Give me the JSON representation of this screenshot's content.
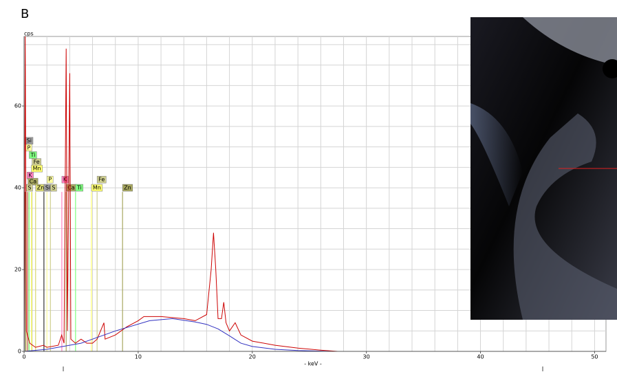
{
  "panel_label": "B",
  "chart_data": {
    "type": "line",
    "y_label": "cps",
    "x_label": "- keV -",
    "xlim": [
      0,
      51
    ],
    "ylim": [
      0,
      77
    ],
    "xticks": [
      0,
      10,
      20,
      30,
      40,
      50
    ],
    "yticks": [
      0,
      20,
      40,
      60
    ],
    "xgrid": [
      0,
      2,
      4,
      6,
      8,
      10,
      12,
      14,
      16,
      18,
      20,
      22,
      24,
      26,
      28,
      30,
      32,
      34,
      36,
      38,
      40,
      42,
      44,
      46,
      48,
      50
    ],
    "ygrid": [
      0,
      5,
      10,
      15,
      20,
      25,
      30,
      35,
      40,
      45,
      50,
      55,
      60,
      65,
      70,
      75
    ],
    "grid": true,
    "series": [
      {
        "color": "#cc0000",
        "x": [
          0,
          0.1,
          0.2,
          0.5,
          1,
          1.7,
          2,
          3,
          3.3,
          3.5,
          3.69,
          3.8,
          4.0,
          4.1,
          4.5,
          5,
          5.5,
          6,
          6.4,
          7,
          7.1,
          8,
          9,
          10,
          10.5,
          12,
          14,
          15,
          16,
          16.4,
          16.6,
          16.8,
          17,
          17.3,
          17.5,
          17.7,
          18,
          18.5,
          19,
          20,
          22,
          24,
          26,
          27.5
        ],
        "values": [
          0,
          77,
          5,
          2,
          1,
          1.5,
          1,
          1.5,
          4,
          2,
          74,
          5,
          68,
          3,
          2,
          3,
          2,
          2,
          3,
          7,
          3,
          4,
          6,
          7.5,
          8.5,
          8.5,
          8,
          7.5,
          9,
          20,
          29,
          20,
          8,
          8,
          12,
          7,
          5,
          7,
          4,
          2.5,
          1.5,
          0.8,
          0.3,
          0
        ]
      },
      {
        "color": "#3030c0",
        "x": [
          0,
          2,
          5,
          8,
          11,
          13,
          15,
          16,
          17,
          18,
          19,
          20,
          22,
          24,
          27
        ],
        "values": [
          0,
          0.5,
          2,
          5,
          7.5,
          8,
          7.2,
          6.6,
          5.5,
          3.8,
          2,
          1.2,
          0.5,
          0.2,
          0
        ]
      }
    ],
    "markers": [
      {
        "label": "Si",
        "energy": 0.1,
        "level": 51.5,
        "color": "#a0a0a0"
      },
      {
        "label": "P",
        "energy": 0.15,
        "level": 49.8,
        "color": "#ffffa0"
      },
      {
        "label": "Ti",
        "energy": 0.45,
        "level": 48,
        "color": "#80ff80"
      },
      {
        "label": "Fe",
        "energy": 0.7,
        "level": 46.3,
        "color": "#d0d090"
      },
      {
        "label": "Mn",
        "energy": 0.64,
        "level": 44.7,
        "color": "#ffff70"
      },
      {
        "label": "K",
        "energy": 0.26,
        "level": 43,
        "color": "#ff80c0"
      },
      {
        "label": "Ca",
        "energy": 0.34,
        "level": 41.5,
        "color": "#a8a860"
      },
      {
        "label": "S",
        "energy": 0.2,
        "level": 40,
        "color": "#d0d090"
      },
      {
        "label": "Zn",
        "energy": 1.01,
        "level": 40,
        "color": "#d8d870"
      },
      {
        "label": "Si",
        "energy": 1.74,
        "level": 40,
        "color": "#a0a0a0"
      },
      {
        "label": "S",
        "energy": 2.31,
        "level": 40,
        "color": "#d0d090"
      },
      {
        "label": "P",
        "energy": 2.01,
        "level": 42,
        "color": "#ffffa0"
      },
      {
        "label": "K",
        "energy": 3.31,
        "level": 42,
        "color": "#ff80c0"
      },
      {
        "label": "Ca",
        "energy": 3.69,
        "level": 40,
        "color": "#a8a860"
      },
      {
        "label": "Ti",
        "energy": 4.51,
        "level": 40,
        "color": "#80ff80"
      },
      {
        "label": "Mn",
        "energy": 5.9,
        "level": 40,
        "color": "#ffff70"
      },
      {
        "label": "Fe",
        "energy": 6.4,
        "level": 42,
        "color": "#d0d090"
      },
      {
        "label": "Zn",
        "energy": 8.63,
        "level": 40,
        "color": "#a8a860"
      }
    ]
  }
}
